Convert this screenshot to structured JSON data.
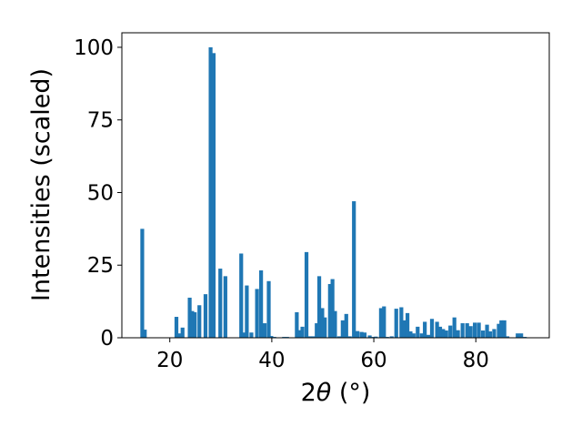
{
  "chart_data": {
    "type": "bar",
    "xlabel_prefix": "2",
    "xlabel_theta": "θ",
    "xlabel_unit": " (°)",
    "ylabel": "Intensities (scaled)",
    "xlim": [
      10.6,
      94.4
    ],
    "ylim": [
      0,
      105
    ],
    "xticks": [
      20,
      40,
      60,
      80
    ],
    "yticks": [
      0,
      25,
      50,
      75,
      100
    ],
    "grid": false,
    "bar_color": "#1f77b4",
    "bar_width": 0.75,
    "x": [
      14.6,
      15.1,
      21.3,
      21.8,
      22.5,
      23.9,
      24.4,
      24.9,
      25.8,
      27.0,
      28.0,
      28.6,
      29.9,
      30.9,
      34.0,
      34.4,
      35.1,
      36.0,
      37.1,
      37.9,
      38.6,
      39.4,
      39.9,
      40.5,
      42.4,
      43.0,
      44.9,
      45.4,
      46.0,
      46.8,
      47.5,
      48.2,
      48.8,
      49.3,
      49.9,
      50.4,
      51.4,
      51.9,
      52.4,
      53.2,
      53.9,
      54.6,
      55.3,
      56.1,
      56.8,
      57.6,
      58.2,
      59.2,
      59.8,
      60.4,
      61.4,
      62.0,
      62.6,
      63.5,
      64.4,
      65.4,
      66.0,
      66.6,
      67.2,
      67.8,
      68.6,
      69.4,
      70.0,
      70.7,
      71.4,
      72.4,
      73.0,
      73.6,
      74.2,
      75.0,
      75.8,
      76.5,
      77.4,
      78.3,
      79.0,
      79.8,
      80.6,
      81.4,
      82.2,
      82.8,
      83.6,
      84.5,
      85.0,
      85.6,
      86.2,
      88.2,
      88.9,
      89.6
    ],
    "values": [
      37.5,
      2.8,
      7.2,
      1.5,
      3.5,
      13.8,
      9.2,
      8.8,
      11.2,
      15.0,
      100.0,
      98.0,
      23.8,
      21.2,
      29.0,
      1.8,
      18.0,
      1.8,
      16.8,
      23.2,
      5.0,
      19.5,
      0.6,
      0.3,
      0.3,
      0.3,
      8.8,
      2.6,
      3.8,
      29.5,
      0.5,
      0.5,
      5.0,
      21.2,
      10.2,
      7.0,
      18.5,
      20.2,
      9.2,
      0.5,
      6.0,
      8.2,
      0.5,
      47.0,
      2.3,
      2.0,
      1.8,
      0.8,
      0.3,
      0.4,
      10.2,
      10.8,
      0.3,
      0.5,
      10.0,
      10.5,
      6.0,
      8.5,
      2.2,
      1.5,
      3.8,
      1.5,
      5.5,
      1.0,
      6.5,
      5.5,
      3.8,
      3.0,
      2.5,
      4.2,
      7.0,
      2.6,
      5.0,
      5.0,
      4.0,
      5.2,
      5.2,
      2.5,
      4.5,
      2.2,
      3.0,
      4.8,
      6.0,
      6.0,
      0.5,
      1.5,
      1.5,
      0.3
    ]
  }
}
